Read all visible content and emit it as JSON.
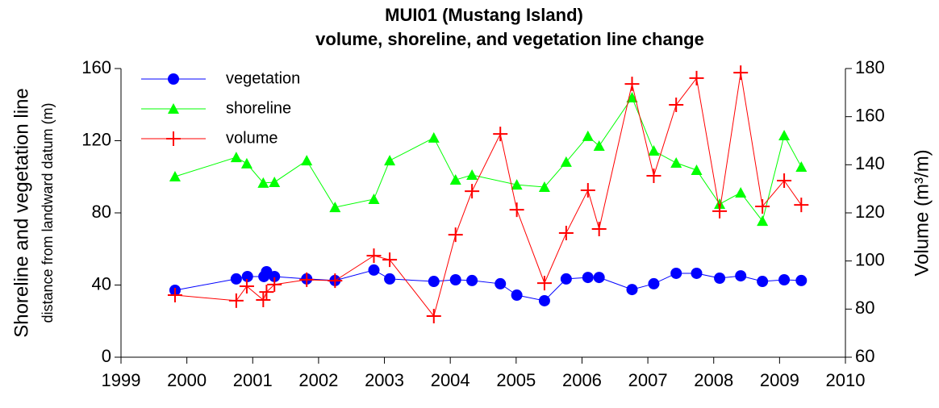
{
  "chart_data": {
    "type": "line",
    "title": [
      "MUI01 (Mustang Island)",
      "volume, shoreline, and vegetation line change"
    ],
    "y_label": "Shoreline and vegetation line",
    "y_sublabel": "distance from landward datum (m)",
    "y2_label": "Volume (m³/m)",
    "xlim": [
      1999,
      2010
    ],
    "xticks": [
      1999,
      2000,
      2001,
      2002,
      2003,
      2004,
      2005,
      2006,
      2007,
      2008,
      2009,
      2010
    ],
    "ylim": [
      0,
      160
    ],
    "yticks": [
      0,
      40,
      80,
      120,
      160
    ],
    "y2lim": [
      60,
      180
    ],
    "y2ticks": [
      60,
      80,
      100,
      120,
      140,
      160,
      180
    ],
    "legend": "upper left",
    "series": [
      {
        "name": "vegetation",
        "color": "#0000ff",
        "marker": "circle",
        "x": [
          1999.82,
          2000.75,
          2000.92,
          2001.17,
          2001.21,
          2001.33,
          2001.82,
          2002.25,
          2002.84,
          2003.08,
          2003.75,
          2004.08,
          2004.33,
          2004.76,
          2005.01,
          2005.43,
          2005.76,
          2006.09,
          2006.26,
          2006.76,
          2007.09,
          2007.43,
          2007.74,
          2008.09,
          2008.41,
          2008.74,
          2009.07,
          2009.33
        ],
        "values": [
          37.1,
          43.4,
          44.7,
          44.7,
          47.4,
          44.7,
          43.4,
          42.5,
          48.3,
          43.4,
          42,
          42.9,
          42.5,
          40.7,
          34.4,
          31.3,
          43.4,
          44.2,
          44.2,
          37.5,
          40.7,
          46.5,
          46.5,
          43.8,
          45.1,
          42,
          42.9,
          42.5
        ]
      },
      {
        "name": "shoreline",
        "color": "#00ff00",
        "marker": "triangle",
        "x": [
          1999.82,
          2000.75,
          2000.91,
          2001.16,
          2001.33,
          2001.82,
          2002.25,
          2002.84,
          2003.08,
          2003.75,
          2004.08,
          2004.33,
          2005.01,
          2005.43,
          2005.76,
          2006.09,
          2006.26,
          2006.76,
          2007.09,
          2007.43,
          2007.74,
          2008.09,
          2008.41,
          2008.74,
          2009.07,
          2009.33
        ],
        "values": [
          100.1,
          110.8,
          107.3,
          96.6,
          97,
          109,
          83.1,
          87.6,
          109,
          121.6,
          98.3,
          101,
          95.6,
          94.3,
          108.2,
          122.5,
          117.1,
          143.9,
          114.4,
          107.7,
          103.7,
          84.9,
          91.2,
          75.5,
          122.9,
          105.5
        ]
      },
      {
        "name": "volume",
        "color": "#ff0000",
        "marker": "plus",
        "axis": "y2",
        "x": [
          1999.82,
          2000.75,
          2000.91,
          2001.16,
          2001.21,
          2001.33,
          2001.82,
          2002.25,
          2002.84,
          2003.08,
          2003.75,
          2004.08,
          2004.33,
          2004.76,
          2005.01,
          2005.43,
          2005.76,
          2006.09,
          2006.26,
          2006.76,
          2007.09,
          2007.43,
          2007.74,
          2008.09,
          2008.41,
          2008.74,
          2009.07,
          2009.33
        ],
        "values": [
          85.8,
          83.5,
          89.5,
          83.8,
          87.1,
          90.2,
          92.2,
          91.8,
          102.2,
          100.5,
          77.1,
          110.9,
          129,
          152.8,
          121.3,
          90.8,
          111.6,
          129.4,
          113.3,
          173.6,
          135.4,
          164.9,
          176,
          120.7,
          178.3,
          122.7,
          133.4,
          123.3
        ]
      }
    ]
  }
}
